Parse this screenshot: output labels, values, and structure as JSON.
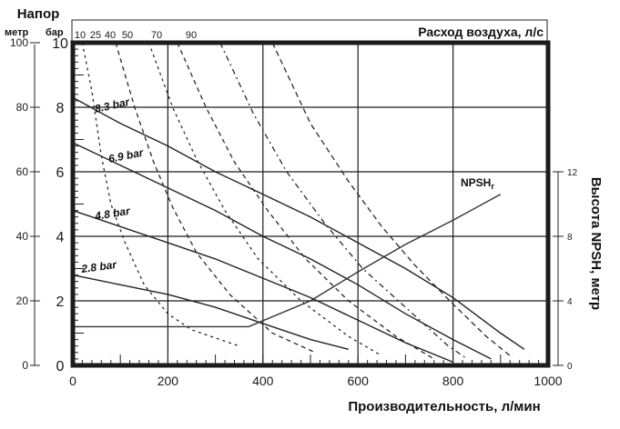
{
  "chart_data": {
    "type": "line",
    "title": "",
    "left_axis_title": "Напор",
    "left_axis_units": [
      "метр",
      "бар"
    ],
    "xlabel": "Производительность, л/мин",
    "ylabel_left_m": "метр",
    "ylabel_left_bar": "бар",
    "ylabel_right": "Высота NPSH, метр",
    "top_axis_label": "Расход воздуха, л/с",
    "xlim": [
      0,
      1000
    ],
    "ylim_bar": [
      0,
      10
    ],
    "ylim_m": [
      0,
      100
    ],
    "ylim_npsh": [
      0,
      12
    ],
    "x_ticks": [
      "0",
      "200",
      "400",
      "600",
      "800",
      "1000"
    ],
    "y_ticks_m": [
      "0",
      "20",
      "40",
      "60",
      "80",
      "100"
    ],
    "y_ticks_bar": [
      "0",
      "2",
      "4",
      "6",
      "8",
      "10"
    ],
    "y_ticks_npsh": [
      "0",
      "4",
      "8",
      "12"
    ],
    "air_flow_labels": [
      "10",
      "25",
      "40",
      "50",
      "70",
      "90"
    ],
    "grid": true,
    "pressure_curves": [
      {
        "name": "8.3 bar",
        "x": [
          0,
          100,
          200,
          300,
          400,
          500,
          600,
          700,
          800,
          900,
          950
        ],
        "y_bar": [
          8.3,
          7.5,
          6.8,
          6.0,
          5.3,
          4.6,
          3.8,
          3.0,
          2.1,
          1.0,
          0.5
        ]
      },
      {
        "name": "6.9 bar",
        "x": [
          0,
          100,
          200,
          300,
          400,
          500,
          600,
          700,
          800,
          880
        ],
        "y_bar": [
          6.9,
          6.2,
          5.5,
          4.8,
          4.0,
          3.3,
          2.5,
          1.6,
          0.8,
          0.2
        ]
      },
      {
        "name": "4.8 bar",
        "x": [
          0,
          100,
          200,
          300,
          400,
          500,
          600,
          700,
          800
        ],
        "y_bar": [
          4.8,
          4.3,
          3.8,
          3.3,
          2.7,
          2.1,
          1.4,
          0.7,
          0.1
        ]
      },
      {
        "name": "2.8 bar",
        "x": [
          0,
          100,
          200,
          300,
          400,
          500,
          580
        ],
        "y_bar": [
          2.8,
          2.5,
          2.2,
          1.8,
          1.3,
          0.8,
          0.5
        ]
      }
    ],
    "air_flow_curves": [
      {
        "name": "10",
        "x": [
          20,
          40,
          60,
          80,
          110,
          150,
          200,
          250,
          350
        ],
        "y_bar": [
          10,
          8.5,
          6.5,
          5.0,
          3.8,
          2.5,
          1.6,
          1.1,
          0.6
        ]
      },
      {
        "name": "25",
        "x": [
          90,
          130,
          170,
          210,
          260,
          330,
          420,
          510
        ],
        "y_bar": [
          10,
          8.0,
          6.3,
          4.9,
          3.5,
          2.2,
          1.0,
          0.4
        ]
      },
      {
        "name": "40",
        "x": [
          160,
          210,
          260,
          320,
          390,
          480,
          580,
          650
        ],
        "y_bar": [
          10,
          8.0,
          6.4,
          4.8,
          3.3,
          2.0,
          0.9,
          0.3
        ]
      },
      {
        "name": "50",
        "x": [
          220,
          280,
          340,
          410,
          490,
          580,
          680,
          760
        ],
        "y_bar": [
          10,
          8.0,
          6.3,
          4.8,
          3.3,
          2.0,
          0.9,
          0.2
        ]
      },
      {
        "name": "70",
        "x": [
          310,
          380,
          450,
          530,
          610,
          700,
          790,
          830
        ],
        "y_bar": [
          10,
          7.8,
          6.0,
          4.4,
          3.0,
          1.8,
          0.6,
          0.2
        ]
      },
      {
        "name": "90",
        "x": [
          420,
          500,
          580,
          650,
          720,
          800,
          870,
          920
        ],
        "y_bar": [
          10,
          7.5,
          5.7,
          4.3,
          3.1,
          1.9,
          0.9,
          0.3
        ]
      }
    ],
    "npsh_curve": {
      "name": "NPSHr",
      "x": [
        0,
        370,
        500,
        600,
        700,
        800,
        900
      ],
      "y_m": [
        2.4,
        2.4,
        4.0,
        5.8,
        7.5,
        9.0,
        10.6
      ]
    },
    "annotations": [
      "8.3 bar",
      "6.9 bar",
      "4.8 bar",
      "2.8 bar",
      "NPSHr"
    ]
  }
}
